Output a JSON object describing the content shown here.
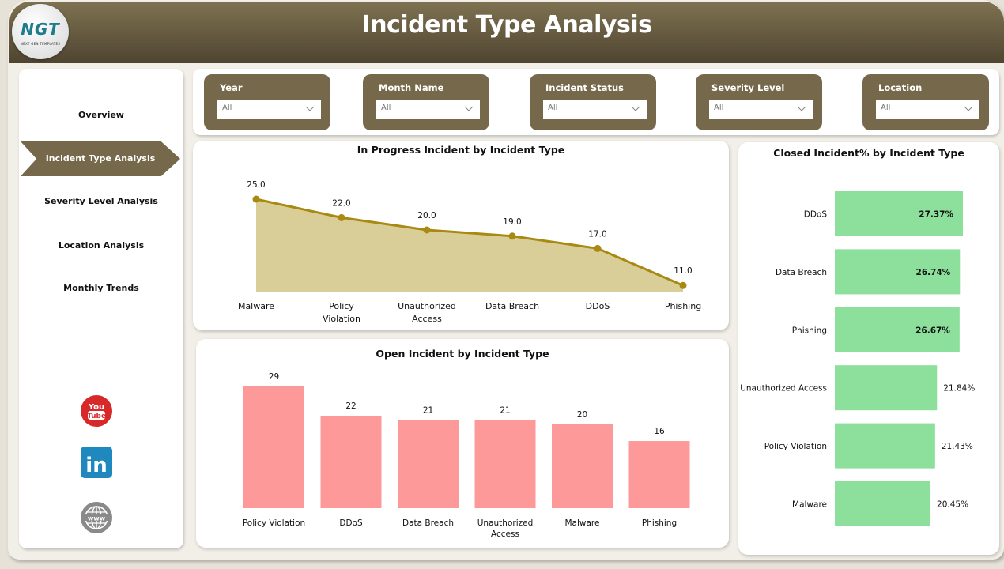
{
  "header": {
    "title": "Incident Type Analysis",
    "logo_text": "NGT",
    "logo_subtext": "NEXT GEN TEMPLATES"
  },
  "sidebar": {
    "items": [
      {
        "label": "Overview",
        "active": false
      },
      {
        "label": "Incident Type Analysis",
        "active": true
      },
      {
        "label": "Severity Level Analysis",
        "active": false
      },
      {
        "label": "Location Analysis",
        "active": false
      },
      {
        "label": "Monthly Trends",
        "active": false
      }
    ],
    "social": [
      {
        "name": "youtube-icon",
        "text_top": "You",
        "text_bottom": "Tube"
      },
      {
        "name": "linkedin-icon",
        "text": "in"
      },
      {
        "name": "website-icon",
        "text": "www"
      }
    ]
  },
  "filters": [
    {
      "label": "Year",
      "value": "All"
    },
    {
      "label": "Month Name",
      "value": "All"
    },
    {
      "label": "Incident Status",
      "value": "All"
    },
    {
      "label": "Severity Level",
      "value": "All"
    },
    {
      "label": "Location",
      "value": "All"
    }
  ],
  "colors": {
    "brand": "#75684b",
    "header_top": "#7f7252",
    "header_bottom": "#4f4530",
    "area_fill": "#d9ce98",
    "area_line": "#a88a12",
    "bar_red": "#fe9999",
    "bar_green": "#8ce09b"
  },
  "chart_data": [
    {
      "type": "area",
      "title": "In Progress Incident by Incident Type",
      "categories": [
        "Malware",
        "Policy Violation",
        "Unauthorized Access",
        "Data Breach",
        "DDoS",
        "Phishing"
      ],
      "category_lines": [
        [
          "Malware"
        ],
        [
          "Policy",
          "Violation"
        ],
        [
          "Unauthorized",
          "Access"
        ],
        [
          "Data Breach"
        ],
        [
          "DDoS"
        ],
        [
          "Phishing"
        ]
      ],
      "values": [
        25.0,
        22.0,
        20.0,
        19.0,
        17.0,
        11.0
      ],
      "labels": [
        "25.0",
        "22.0",
        "20.0",
        "19.0",
        "17.0",
        "11.0"
      ],
      "xlabel": "",
      "ylabel": "",
      "grid": false,
      "legend": false
    },
    {
      "type": "bar",
      "title": "Open Incident by Incident Type",
      "categories": [
        "Policy Violation",
        "DDoS",
        "Data Breach",
        "Unauthorized Access",
        "Malware",
        "Phishing"
      ],
      "category_lines": [
        [
          "Policy Violation"
        ],
        [
          "DDoS"
        ],
        [
          "Data Breach"
        ],
        [
          "Unauthorized",
          "Access"
        ],
        [
          "Malware"
        ],
        [
          "Phishing"
        ]
      ],
      "values": [
        29,
        22,
        21,
        21,
        20,
        16
      ],
      "labels": [
        "29",
        "22",
        "21",
        "21",
        "20",
        "16"
      ],
      "xlabel": "",
      "ylabel": "",
      "grid": false,
      "legend": false
    },
    {
      "type": "bar",
      "orientation": "horizontal",
      "title": "Closed Incident% by Incident Type",
      "categories": [
        "DDoS",
        "Data Breach",
        "Phishing",
        "Unauthorized Access",
        "Policy Violation",
        "Malware"
      ],
      "values": [
        27.37,
        26.74,
        26.67,
        21.84,
        21.43,
        20.45
      ],
      "labels": [
        "27.37%",
        "26.74%",
        "26.67%",
        "21.84%",
        "21.43%",
        "20.45%"
      ],
      "unit": "%",
      "xlabel": "",
      "ylabel": "",
      "grid": false,
      "legend": false
    }
  ]
}
